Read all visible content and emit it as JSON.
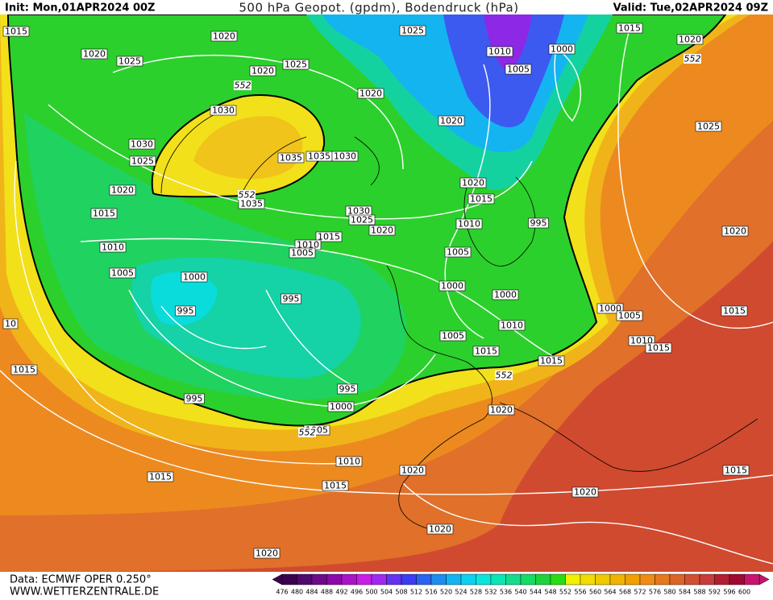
{
  "header": {
    "init": "Init: Mon,01APR2024 00Z",
    "title": "500 hPa Geopot. (gpdm), Bodendruck (hPa)",
    "valid": "Valid: Tue,02APR2024 09Z"
  },
  "footer": {
    "source": "Data: ECMWF OPER 0.250°",
    "site": "WWW.WETTERZENTRALE.DE"
  },
  "isobar_labels": [
    "1015",
    "1020",
    "1025",
    "1015",
    "1020",
    "1020",
    "1025",
    "1010",
    "1000",
    "1020",
    "1025",
    "1005",
    "1020",
    "1030",
    "1020",
    "1025",
    "1030",
    "1025",
    "1035",
    "1035",
    "1030",
    "1020",
    "1020",
    "1035",
    "1015",
    "1015",
    "1030",
    "1025",
    "995",
    "1010",
    "1020",
    "1020",
    "1015",
    "1010",
    "1010",
    "1005",
    "1005",
    "1005",
    "1000",
    "1000",
    "1000",
    "995",
    "1000",
    "1005",
    "995",
    "1015",
    "1005",
    "1010",
    "1010",
    "1015",
    "1015",
    "1015",
    "1015",
    "995",
    "995",
    "1000",
    "1020",
    "1005",
    "1010",
    "1020",
    "1015",
    "1015",
    "1015",
    "1020",
    "1020",
    "1020",
    "10"
  ],
  "contour_labels": [
    "552",
    "552",
    "552",
    "552",
    "552"
  ],
  "colorbar": {
    "labels": [
      476,
      480,
      484,
      488,
      492,
      496,
      500,
      504,
      508,
      512,
      516,
      520,
      524,
      528,
      532,
      536,
      540,
      544,
      548,
      552,
      556,
      560,
      564,
      568,
      572,
      576,
      580,
      584,
      588,
      592,
      596,
      600
    ],
    "colors": [
      "#3c0050",
      "#500a6e",
      "#6e0a8c",
      "#8c0aaa",
      "#aa14c8",
      "#c81ee6",
      "#a028f0",
      "#6432f0",
      "#3c3cf0",
      "#2864f0",
      "#1e8cf0",
      "#14b4f0",
      "#0ad2f0",
      "#0ae6dc",
      "#0ae6b4",
      "#14dc8c",
      "#14dc64",
      "#1ed23c",
      "#28dc14",
      "#f0f000",
      "#f0dc00",
      "#f0c800",
      "#f0b400",
      "#f0a000",
      "#f08c14",
      "#e6781e",
      "#dc6428",
      "#d25032",
      "#c83c3c",
      "#b41e32",
      "#a00a32",
      "#c8146e"
    ]
  }
}
